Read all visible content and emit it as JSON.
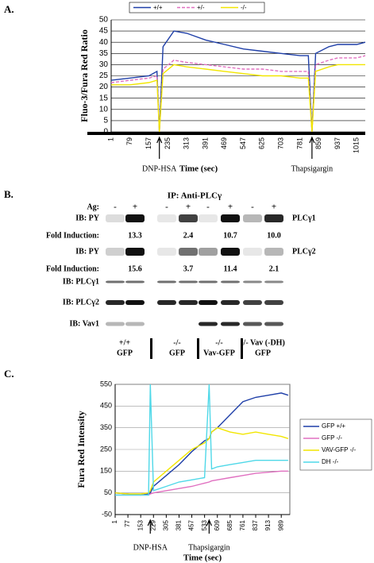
{
  "chart_data": [
    {
      "type": "line",
      "panel": "A.",
      "ylabel": "Fluo-3/Fura Red Ratio",
      "xlabel": "Time (sec)",
      "x": [
        1,
        79,
        157,
        190,
        200,
        215,
        260,
        313,
        391,
        469,
        547,
        625,
        703,
        781,
        815,
        830,
        845,
        900,
        937,
        1015,
        1050
      ],
      "series": [
        {
          "name": "+/+",
          "color": "#1f3fa8",
          "line_style": "solid",
          "values": [
            23,
            24,
            25,
            27,
            0,
            38,
            45,
            44,
            41,
            39,
            37,
            36,
            35,
            34,
            34,
            0,
            35,
            38,
            39,
            39,
            40
          ]
        },
        {
          "name": "+/-",
          "color": "#e070c0",
          "line_style": "dashed",
          "values": [
            22,
            23,
            24,
            25,
            0,
            28,
            32,
            31,
            30,
            29,
            28,
            28,
            27,
            27,
            27,
            0,
            30,
            32,
            33,
            33,
            34
          ]
        },
        {
          "name": "-/-",
          "color": "#f2e600",
          "line_style": "solid",
          "values": [
            21,
            21,
            22,
            23,
            0,
            26,
            30,
            29,
            28,
            27,
            26,
            25,
            25,
            24,
            24,
            0,
            27,
            29,
            30,
            30,
            30
          ]
        }
      ],
      "xlim": [
        1,
        1050
      ],
      "xticks": [
        1,
        79,
        157,
        235,
        313,
        391,
        469,
        547,
        625,
        703,
        781,
        859,
        937,
        1015
      ],
      "ylim": [
        0,
        50
      ],
      "yticks": [
        0,
        5,
        10,
        15,
        20,
        25,
        30,
        35,
        40,
        45,
        50
      ],
      "grid": true,
      "legend": "top",
      "annotations": [
        {
          "text": "DNP-HSA",
          "x": 200
        },
        {
          "text": "Thapsigargin",
          "x": 830
        }
      ]
    },
    {
      "type": "line",
      "panel": "C.",
      "ylabel": "Fura Red Intensity",
      "xlabel": "Time (sec)",
      "x": [
        1,
        77,
        153,
        200,
        210,
        229,
        305,
        381,
        457,
        533,
        560,
        575,
        609,
        685,
        761,
        837,
        913,
        989,
        1030
      ],
      "series": [
        {
          "name": "GFP +/+",
          "color": "#1f3fa8",
          "line_style": "solid",
          "values": [
            50,
            45,
            40,
            45,
            50,
            80,
            130,
            180,
            240,
            290,
            300,
            330,
            350,
            410,
            470,
            490,
            500,
            510,
            500
          ]
        },
        {
          "name": "GFP -/-",
          "color": "#e070c0",
          "line_style": "solid",
          "values": [
            40,
            40,
            40,
            40,
            45,
            50,
            60,
            70,
            80,
            95,
            100,
            105,
            110,
            120,
            130,
            140,
            145,
            150,
            150
          ]
        },
        {
          "name": "VAV-GFP -/-",
          "color": "#f2e600",
          "line_style": "solid",
          "values": [
            50,
            45,
            45,
            50,
            60,
            100,
            150,
            200,
            250,
            280,
            300,
            330,
            350,
            330,
            320,
            330,
            320,
            310,
            300
          ]
        },
        {
          "name": "DH -/-",
          "color": "#4fd8e8",
          "line_style": "solid",
          "values": [
            40,
            40,
            40,
            40,
            550,
            60,
            80,
            100,
            110,
            120,
            550,
            160,
            170,
            180,
            190,
            200,
            200,
            200,
            200
          ]
        }
      ],
      "xlim": [
        1,
        1040
      ],
      "xticks": [
        1,
        77,
        153,
        229,
        305,
        381,
        457,
        533,
        609,
        685,
        761,
        837,
        913,
        989
      ],
      "ylim": [
        -50,
        550
      ],
      "yticks": [
        -50,
        50,
        150,
        250,
        350,
        450,
        550
      ],
      "grid": true,
      "legend": "right",
      "annotations": [
        {
          "text": "DNP-HSA",
          "x": 210
        },
        {
          "text": "Thapsigargin",
          "x": 560
        }
      ]
    }
  ],
  "blot": {
    "panel": "B.",
    "ip": "IP: Anti-PLCγ",
    "ag_label": "Ag:",
    "lanes": [
      "-",
      "+",
      "-",
      "+",
      "-",
      "+",
      "-",
      "+"
    ],
    "rows": [
      {
        "label": "IB: PY",
        "target": "PLCγ1",
        "fold_label": "Fold Induction:",
        "fold": [
          "13.3",
          "2.4",
          "10.7",
          "10.0"
        ]
      },
      {
        "label": "IB: PY",
        "target": "PLCγ2",
        "fold_label": "Fold Induction:",
        "fold": [
          "15.6",
          "3.7",
          "11.4",
          "2.1"
        ]
      },
      {
        "label": "IB: PLCγ1"
      },
      {
        "label": "IB: PLCγ2"
      },
      {
        "label": "IB: Vav1"
      }
    ],
    "groups": [
      [
        "+/+",
        "GFP"
      ],
      [
        "-/-",
        "GFP"
      ],
      [
        "-/-",
        "Vav-GFP"
      ],
      [
        "-/- Vav (-DH)",
        "GFP"
      ]
    ]
  }
}
